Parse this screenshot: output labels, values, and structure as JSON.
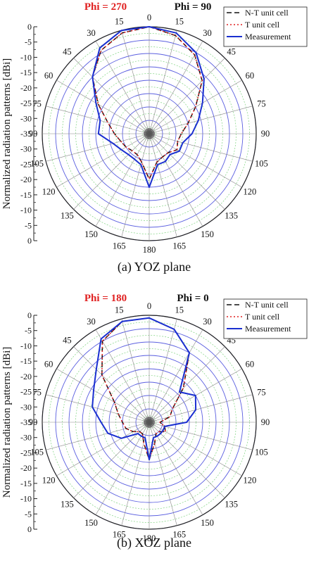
{
  "chart_data": [
    {
      "type": "polar-line",
      "caption": "(a) YOZ plane",
      "phi_left": "Phi = 270",
      "phi_right": "Phi = 90",
      "phi_left_color": "#e02020",
      "phi_right_color": "#111111",
      "ylabel": "Normalized radiation patterns [dBi]",
      "angle_labels": [
        "0",
        "15",
        "30",
        "45",
        "60",
        "75",
        "90",
        "105",
        "120",
        "135",
        "150",
        "165",
        "180",
        "165",
        "150",
        "135",
        "120",
        "105",
        "90",
        "75",
        "60",
        "45",
        "30",
        "15"
      ],
      "radial_ticks": [
        "0",
        "-5",
        "-10",
        "-15",
        "-20",
        "-25",
        "-30",
        "-35",
        "-30",
        "-25",
        "-20",
        "-15",
        "-10",
        "-5",
        "0"
      ],
      "rlim": [
        -40,
        0
      ],
      "angles": [
        0,
        15,
        30,
        45,
        60,
        75,
        90,
        105,
        120,
        135,
        150,
        165,
        180,
        195,
        210,
        225,
        240,
        255,
        270,
        285,
        300,
        315,
        330,
        345
      ],
      "series": [
        {
          "name": "N-T unit cell",
          "color": "#111111",
          "dash": "7,4",
          "width": 1.5,
          "values": [
            0,
            -2,
            -6,
            -12,
            -20,
            -25,
            -28,
            -29,
            -28,
            -30,
            -30,
            -29,
            -23,
            -29,
            -31,
            -31,
            -30,
            -29,
            -27,
            -24,
            -18,
            -10,
            -4,
            -1
          ]
        },
        {
          "name": "T unit cell",
          "color": "#e02020",
          "dash": "2,3",
          "width": 1.5,
          "values": [
            0,
            -2,
            -6,
            -12,
            -20,
            -25,
            -28,
            -29,
            -28,
            -30,
            -30,
            -29,
            -23,
            -29,
            -31,
            -31,
            -30,
            -29,
            -27,
            -24,
            -18,
            -10,
            -4,
            -1
          ]
        },
        {
          "name": "Measurement",
          "color": "#1a2fd0",
          "dash": "",
          "width": 2,
          "values": [
            0,
            -1,
            -5,
            -11,
            -17,
            -21,
            -24,
            -27,
            -27,
            -29,
            -28,
            -28,
            -20,
            -28,
            -29,
            -29,
            -28,
            -26,
            -21,
            -21,
            -17,
            -10,
            -3,
            0
          ]
        }
      ]
    },
    {
      "type": "polar-line",
      "caption": "(b) XOZ plane",
      "phi_left": "Phi = 180",
      "phi_right": "Phi = 0",
      "phi_left_color": "#e02020",
      "phi_right_color": "#111111",
      "ylabel": "Normalized radiation patterns [dBi]",
      "angle_labels": [
        "0",
        "15",
        "30",
        "45",
        "60",
        "75",
        "90",
        "105",
        "120",
        "135",
        "150",
        "165",
        "180",
        "165",
        "150",
        "135",
        "120",
        "105",
        "90",
        "75",
        "60",
        "45",
        "30",
        "15"
      ],
      "radial_ticks": [
        "0",
        "-5",
        "-10",
        "-15",
        "-20",
        "-25",
        "-30",
        "-35",
        "-30",
        "-25",
        "-20",
        "-15",
        "-10",
        "-5",
        "0"
      ],
      "rlim": [
        -40,
        0
      ],
      "angles": [
        0,
        15,
        30,
        45,
        60,
        75,
        90,
        105,
        120,
        135,
        150,
        165,
        180,
        195,
        210,
        225,
        240,
        255,
        270,
        285,
        300,
        315,
        330,
        345
      ],
      "series": [
        {
          "name": "N-T unit cell",
          "color": "#111111",
          "dash": "7,4",
          "width": 1.5,
          "values": [
            -1,
            -4,
            -10,
            -22,
            -30,
            -32,
            -36,
            -34,
            -33,
            -35,
            -35,
            -32,
            -26,
            -32,
            -35,
            -35,
            -33,
            -31,
            -30,
            -28,
            -25,
            -15,
            -5,
            -1
          ]
        },
        {
          "name": "T unit cell",
          "color": "#e02020",
          "dash": "2,3",
          "width": 1.5,
          "values": [
            -1,
            -4,
            -10,
            -22,
            -30,
            -32,
            -36,
            -34,
            -33,
            -35,
            -35,
            -32,
            -26,
            -32,
            -35,
            -35,
            -33,
            -31,
            -30,
            -28,
            -25,
            -15,
            -5,
            -1
          ]
        },
        {
          "name": "Measurement",
          "color": "#1a2fd0",
          "dash": "",
          "width": 2,
          "values": [
            -1,
            -4,
            -10,
            -24,
            -20,
            -22,
            -26,
            -34,
            -34,
            -34,
            -34,
            -34,
            -26,
            -34,
            -34,
            -34,
            -28,
            -24,
            -22,
            -18,
            -16,
            -12,
            -4,
            -1
          ]
        }
      ]
    }
  ]
}
